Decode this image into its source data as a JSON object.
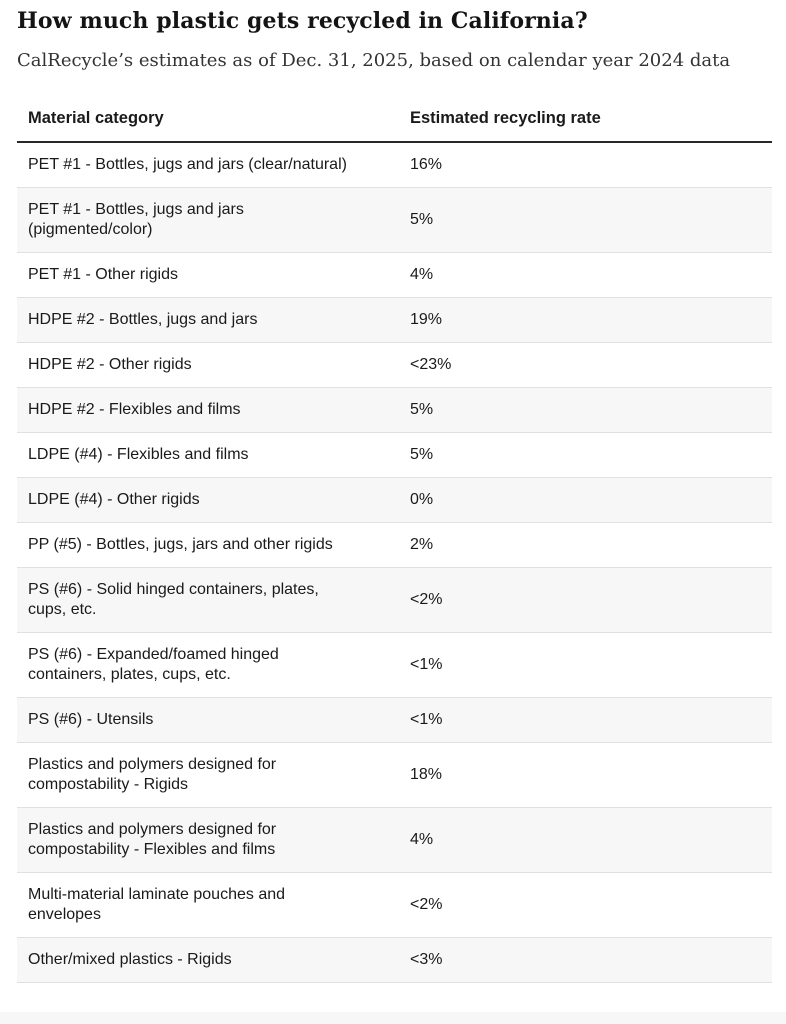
{
  "page": {
    "background_color": "#ffffff",
    "stripe_color": "#f7f7f7",
    "divider_color": "#e0e0e0",
    "header_rule_color": "#282828",
    "text_color": "#1a1a1a"
  },
  "header": {
    "title": "How much plastic gets recycled in California?",
    "subtitle": "CalRecycle’s estimates as of Dec. 31, 2025, based on calendar year 2024 data"
  },
  "chart_data": {
    "type": "table",
    "title": "How much plastic gets recycled in California?",
    "subtitle": "CalRecycle’s estimates as of Dec. 31, 2025, based on calendar year 2024 data",
    "columns": [
      "Material category",
      "Estimated recycling rate"
    ],
    "layout": {
      "striped": true,
      "stripe_rows": "even",
      "grid": "horizontal-dividers",
      "header_rule": "2px dark"
    },
    "rows": [
      {
        "category": "PET #1 - Bottles, jugs and jars (clear/natural)",
        "rate": "16%"
      },
      {
        "category": "PET #1 - Bottles, jugs and jars\n(pigmented/color)",
        "rate": "5%"
      },
      {
        "category": "PET #1 - Other rigids",
        "rate": "4%"
      },
      {
        "category": "HDPE #2 - Bottles, jugs and jars",
        "rate": "19%"
      },
      {
        "category": "HDPE #2 - Other rigids",
        "rate": "<23%"
      },
      {
        "category": "HDPE #2 - Flexibles and films",
        "rate": "5%"
      },
      {
        "category": "LDPE (#4) - Flexibles and films",
        "rate": "5%"
      },
      {
        "category": "LDPE (#4) - Other rigids",
        "rate": "0%"
      },
      {
        "category": "PP (#5) - Bottles, jugs, jars and other rigids",
        "rate": "2%"
      },
      {
        "category": "PS (#6) - Solid hinged containers, plates,\ncups, etc.",
        "rate": "<2%"
      },
      {
        "category": "PS (#6) - Expanded/foamed hinged\ncontainers, plates, cups, etc.",
        "rate": "<1%"
      },
      {
        "category": "PS (#6) - Utensils",
        "rate": "<1%"
      },
      {
        "category": "Plastics and polymers designed for\ncompostability - Rigids",
        "rate": "18%"
      },
      {
        "category": "Plastics and polymers designed for\ncompostability - Flexibles and films",
        "rate": "4%"
      },
      {
        "category": "Multi-material laminate pouches and\nenvelopes",
        "rate": "<2%"
      },
      {
        "category": "Other/mixed plastics - Rigids",
        "rate": "<3%"
      }
    ]
  }
}
